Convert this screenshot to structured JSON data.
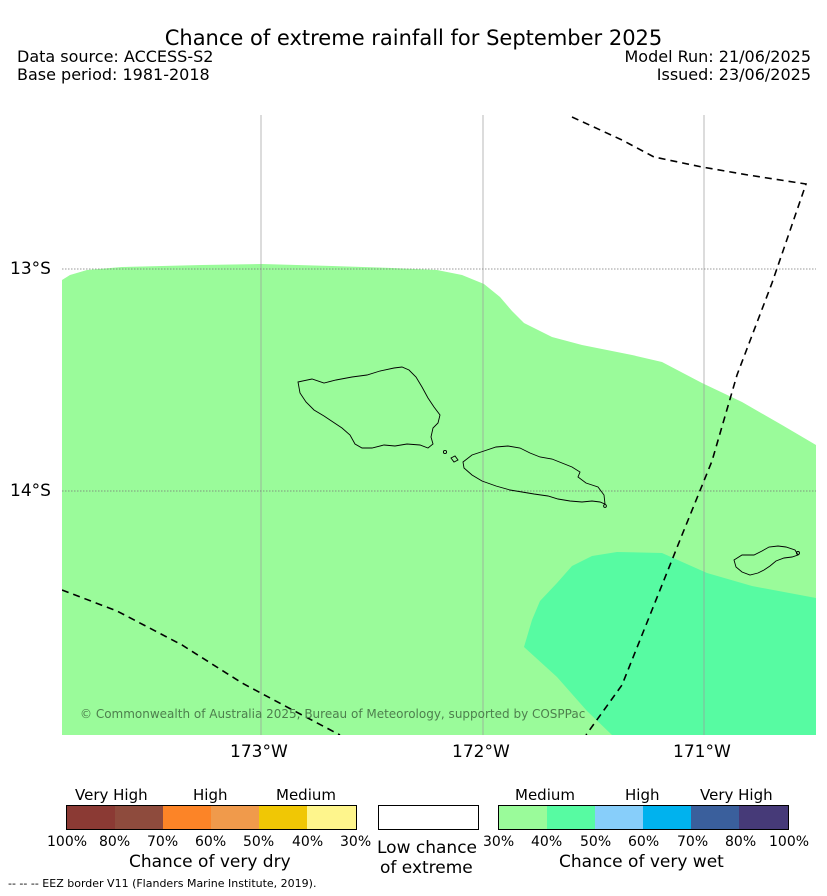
{
  "title": "Chance of extreme rainfall for September 2025",
  "data_source": "Data source: ACCESS-S2",
  "base_period": "Base period: 1981-2018",
  "model_run": "Model Run: 21/06/2025",
  "issued": "Issued: 23/06/2025",
  "map": {
    "lat_labels": [
      "13°S",
      "14°S"
    ],
    "lon_labels": [
      "173°W",
      "172°W",
      "171°W"
    ],
    "copyright": "© Commonwealth of Australia 2025, Bureau of Meteorology, supported by COSPPac",
    "colors": {
      "wet_30_40": "#9afb9a",
      "wet_40_50": "#57fba2",
      "eez_border": "#000000"
    }
  },
  "legend": {
    "dry": {
      "categories": [
        "Very High",
        "High",
        "Medium"
      ],
      "ticks": [
        "100%",
        "80%",
        "70%",
        "60%",
        "50%",
        "40%",
        "30%"
      ],
      "caption": "Chance of very dry",
      "colors": [
        "#8b3a34",
        "#8e4b3d",
        "#fc8427",
        "#f09a4b",
        "#f0c705",
        "#fef58c"
      ]
    },
    "low": {
      "caption_line1": "Low chance",
      "caption_line2": "of extreme",
      "color": "#ffffff"
    },
    "wet": {
      "categories": [
        "Medium",
        "High",
        "Very High"
      ],
      "ticks": [
        "30%",
        "40%",
        "50%",
        "60%",
        "70%",
        "80%",
        "100%"
      ],
      "caption": "Chance of very wet",
      "colors": [
        "#9afb9a",
        "#57fba2",
        "#87cefa",
        "#00b2ee",
        "#3a5f9c",
        "#463a78"
      ]
    }
  },
  "footnote": "--  --  -- EEZ border V11 (Flanders Marine Institute, 2019)."
}
